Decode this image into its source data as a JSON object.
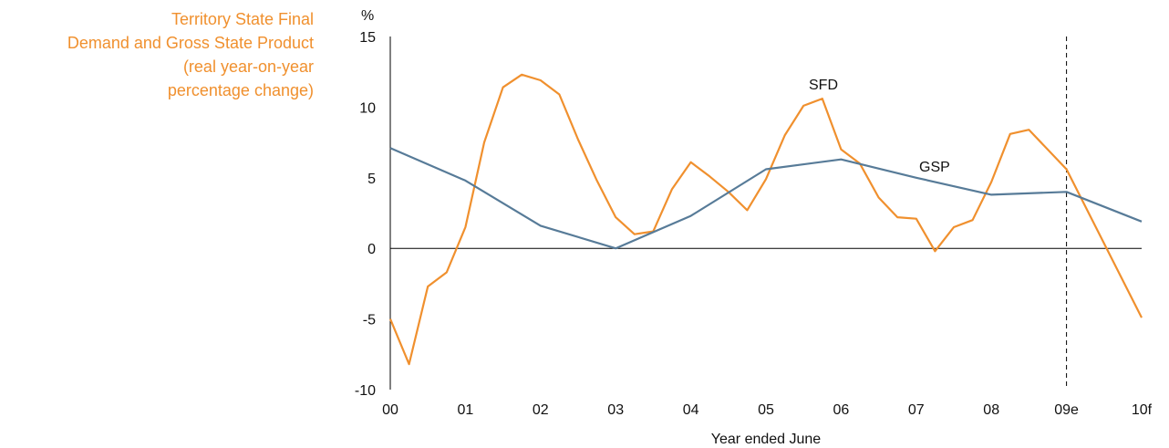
{
  "caption": {
    "lines": [
      "Territory State Final",
      "Demand and Gross State Product",
      "(real year-on-year",
      "percentage change)"
    ]
  },
  "colors": {
    "sfd": "#f0902e",
    "gsp": "#577b98",
    "axis": "#000000",
    "caption": "#f0902e"
  },
  "chart_data": {
    "type": "line",
    "ylabel": "%",
    "xlabel": "Year ended June",
    "x_ticks": [
      "00",
      "01",
      "02",
      "03",
      "04",
      "05",
      "06",
      "07",
      "08",
      "09e",
      "10f"
    ],
    "y_ticks": [
      "-10",
      "-5",
      "0",
      "5",
      "10",
      "15"
    ],
    "ylim": [
      -10,
      15
    ],
    "xlim": [
      0,
      10
    ],
    "forecast_divider_x": 9,
    "grid": false,
    "series": [
      {
        "name": "SFD",
        "x": [
          0.0,
          0.25,
          0.5,
          0.75,
          1.0,
          1.25,
          1.5,
          1.75,
          2.0,
          2.25,
          2.5,
          2.75,
          3.0,
          3.25,
          3.5,
          3.75,
          4.0,
          4.25,
          4.5,
          4.75,
          5.0,
          5.25,
          5.5,
          5.75,
          6.0,
          6.25,
          6.5,
          6.75,
          7.0,
          7.25,
          7.5,
          7.75,
          8.0,
          8.25,
          8.5,
          9.0,
          10.0
        ],
        "values": [
          -5.0,
          -8.2,
          -2.7,
          -1.7,
          1.5,
          7.5,
          11.4,
          12.3,
          11.9,
          10.9,
          7.7,
          4.8,
          2.2,
          1.0,
          1.2,
          4.2,
          6.1,
          5.1,
          4.0,
          2.7,
          4.9,
          8.0,
          10.1,
          10.6,
          7.0,
          6.0,
          3.6,
          2.2,
          2.1,
          -0.2,
          1.5,
          2.0,
          4.7,
          8.1,
          8.4,
          5.6,
          -4.9
        ]
      },
      {
        "name": "GSP",
        "x": [
          0,
          1,
          2,
          3,
          4,
          5,
          6,
          7,
          8,
          9,
          10
        ],
        "values": [
          7.1,
          4.8,
          1.6,
          0.0,
          2.3,
          5.6,
          6.3,
          5.0,
          3.8,
          4.0,
          1.9
        ]
      }
    ]
  }
}
